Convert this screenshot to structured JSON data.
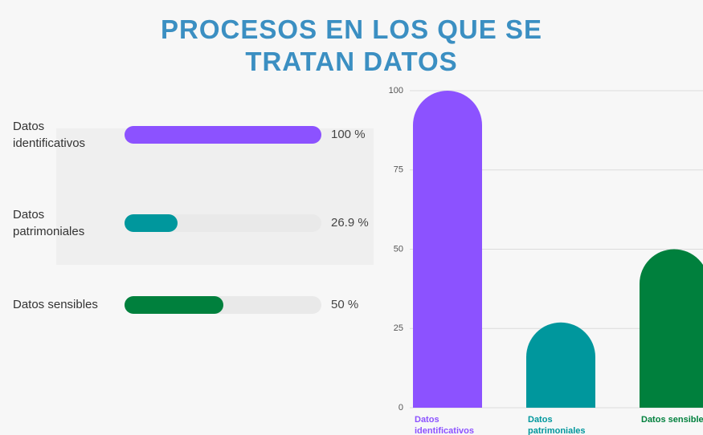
{
  "title": [
    "PROCESOS EN LOS QUE SE",
    "TRATAN DATOS"
  ],
  "chart_data": [
    {
      "type": "progress",
      "categories": [
        "Datos identificativos",
        "Datos patrimoniales",
        "Datos sensibles"
      ],
      "values": [
        100,
        26.9,
        50
      ],
      "value_labels": [
        "100 %",
        "26.9 %",
        "50 %"
      ],
      "colors": [
        "#8c52ff",
        "#00979d",
        "#00803d"
      ],
      "xlim": [
        0,
        100
      ]
    },
    {
      "type": "bar",
      "categories": [
        "Datos identificativos",
        "Datos patrimoniales",
        "Datos sensibles"
      ],
      "values": [
        100,
        26.9,
        50
      ],
      "colors": [
        "#8c52ff",
        "#00979d",
        "#00803d"
      ],
      "ylim": [
        0,
        100
      ],
      "yticks": [
        0,
        25,
        50,
        75,
        100
      ],
      "grid": true
    }
  ]
}
